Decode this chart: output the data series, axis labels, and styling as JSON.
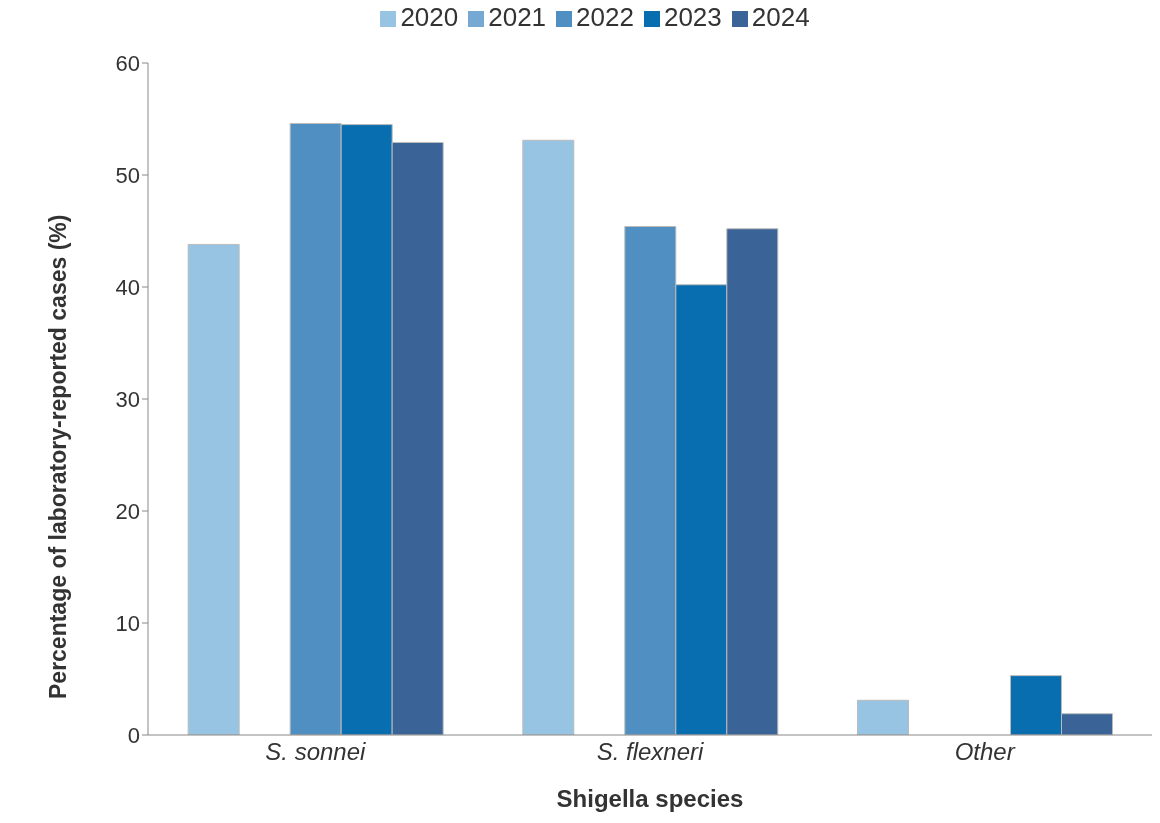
{
  "chart_data": {
    "type": "bar",
    "xlabel": "Shigella species",
    "ylabel": "Percentage of laboratory-reported cases (%)",
    "categories": [
      "S. sonnei",
      "S. flexneri",
      "Other"
    ],
    "series": [
      {
        "name": "2020",
        "color": "#97c4e2",
        "values": [
          43.8,
          53.1,
          3.1
        ]
      },
      {
        "name": "2021",
        "color": "#75a9d4",
        "values": [
          null,
          null,
          null
        ]
      },
      {
        "name": "2022",
        "color": "#4f8fc2",
        "values": [
          54.6,
          45.4,
          null
        ]
      },
      {
        "name": "2023",
        "color": "#086eaf",
        "values": [
          54.5,
          40.2,
          5.3
        ]
      },
      {
        "name": "2024",
        "color": "#3a6497",
        "values": [
          52.9,
          45.2,
          1.9
        ]
      }
    ],
    "ylim": [
      0,
      60
    ],
    "yticks": [
      0,
      10,
      20,
      30,
      40,
      50,
      60
    ],
    "grid": false,
    "legend": "top"
  }
}
